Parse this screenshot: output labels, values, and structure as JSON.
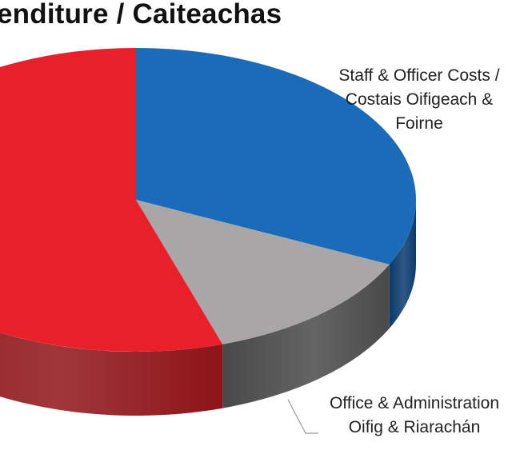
{
  "chart_data": {
    "type": "pie",
    "title": "enditure / Caiteachas",
    "slices": [
      {
        "label": [
          "Staff & Officer Costs /",
          "Costais Oifigeach &",
          "Foirne"
        ],
        "value": 32,
        "color": "#1a6cb9",
        "side": "#0b3a6d"
      },
      {
        "label": [
          "Office & Administration",
          "Oifig & Riarachán"
        ],
        "value": 13,
        "color": "#a8a6a6",
        "side": "#4a4949"
      },
      {
        "label": [],
        "value": 55,
        "color": "#e8202a",
        "side": "#8e1418"
      }
    ]
  }
}
